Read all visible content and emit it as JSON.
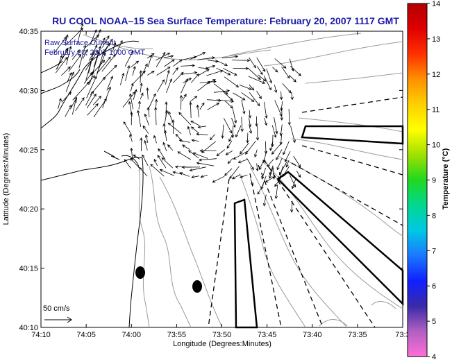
{
  "title": "RU COOL  NOAA–15  Sea Surface Temperature:  February 20, 2007 1117 GMT",
  "annotation": {
    "line1": "Raw Surface Current",
    "line2": "February 20, 2007 1000 GMT"
  },
  "scale_label": "50 cm/s",
  "colorbar": {
    "label": "Temperature (°C)",
    "ticks": [
      "14",
      "13",
      "12",
      "11",
      "10",
      "9",
      "8",
      "7",
      "6",
      "5",
      "4"
    ],
    "colors": [
      "#ff6ed8",
      "#b060c0",
      "#3a2aa8",
      "#1020ff",
      "#1a78ff",
      "#00c8e6",
      "#00d890",
      "#20d820",
      "#a0e000",
      "#ffff00",
      "#ffd000",
      "#ff9000",
      "#ff3000",
      "#e00000",
      "#b00000"
    ]
  },
  "chart_data": {
    "type": "map",
    "xlabel": "Longitude (Degrees:Minutes)",
    "ylabel": "Latitude (Degrees:Minutes)",
    "x_ticks": [
      "74:10",
      "74:05",
      "74:00",
      "73:55",
      "73:50",
      "73:45",
      "73:40",
      "73:35",
      "73:3"
    ],
    "y_ticks": [
      "40:35",
      "40:30",
      "40:25",
      "40:20",
      "40:15",
      "40:10"
    ],
    "xlim_minutes": [
      -74.1667,
      -73.5
    ],
    "ylim": [
      "40:10",
      "40:35"
    ]
  }
}
